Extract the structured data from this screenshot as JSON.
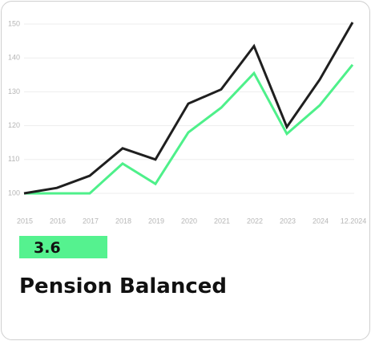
{
  "chart_data": {
    "type": "line",
    "categories": [
      "2015",
      "2016",
      "2017",
      "2018",
      "2019",
      "2020",
      "2021",
      "2022",
      "2023",
      "2024",
      "12.2024"
    ],
    "series": [
      {
        "color": "#1f1f1f",
        "values": [
          100,
          101.6,
          105.2,
          113.3,
          110,
          126.5,
          130.7,
          143.5,
          119.6,
          133.6,
          150.5
        ]
      },
      {
        "color": "#4ef08a",
        "values": [
          100,
          100,
          100,
          108.8,
          102.8,
          118,
          125.3,
          135.5,
          117.6,
          126,
          138
        ]
      }
    ],
    "ylim": [
      98,
      152
    ],
    "yticks": [
      100,
      110,
      120,
      130,
      140,
      150
    ],
    "grid": true
  },
  "card": {
    "badge": "3.6",
    "title": "Pension Balanced"
  }
}
